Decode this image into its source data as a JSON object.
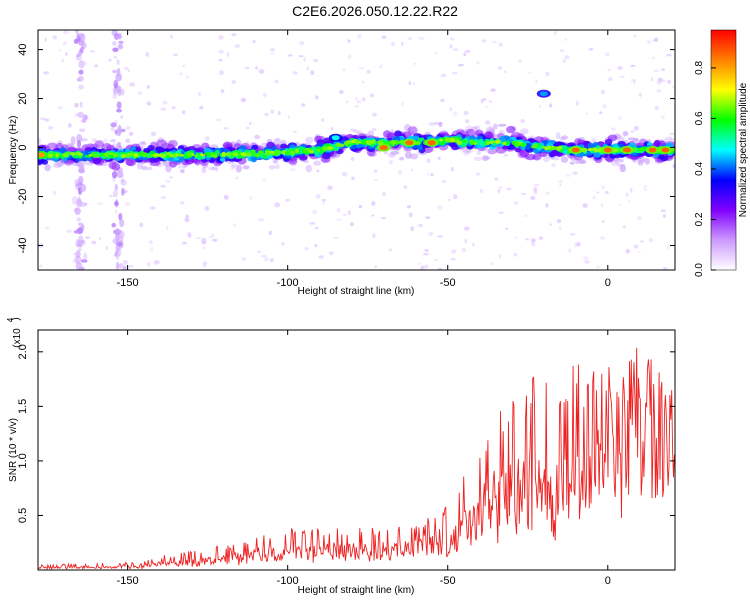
{
  "page": {
    "title": "C2E6.2026.050.12.22.R22"
  },
  "chart_data": [
    {
      "type": "heatmap",
      "xlabel": "Height of straight line (km)",
      "ylabel": "Frequency (Hz)",
      "xlim": [
        -178,
        21
      ],
      "ylim": [
        -50,
        48
      ],
      "x_ticks": [
        -150,
        -100,
        -50,
        0
      ],
      "y_ticks": [
        -40,
        -20,
        0,
        20,
        40
      ],
      "grid": false,
      "colorbar": {
        "label": "Normalized spectral amplitude",
        "range": [
          0,
          0.95
        ],
        "ticks": [
          "0.0",
          "0.2",
          "0.4",
          "0.6",
          "0.8"
        ],
        "colors": [
          "#ffffff",
          "#cc99ff",
          "#8000ff",
          "#0000ff",
          "#00ffff",
          "#00ff00",
          "#ffff00",
          "#ff8000",
          "#ff0000"
        ]
      },
      "ridge": {
        "x": [
          -178,
          -160,
          -140,
          -120,
          -100,
          -90,
          -80,
          -70,
          -60,
          -50,
          -40,
          -30,
          -20,
          -10,
          0,
          10,
          20
        ],
        "freq_hz": [
          -3,
          -3,
          -3,
          -3,
          -2,
          -1,
          2,
          2,
          2,
          3,
          2,
          2,
          0,
          -1,
          -1,
          -1,
          -1
        ]
      },
      "hotspots": [
        {
          "x": -177,
          "freq_hz": -3,
          "amplitude": 0.85
        },
        {
          "x": -85,
          "freq_hz": 4,
          "amplitude": 0.5
        },
        {
          "x": -70,
          "freq_hz": 0,
          "amplitude": 0.9
        },
        {
          "x": -62,
          "freq_hz": 2,
          "amplitude": 0.9
        },
        {
          "x": -55,
          "freq_hz": 2,
          "amplitude": 0.9
        },
        {
          "x": -20,
          "freq_hz": 22,
          "amplitude": 0.45
        },
        {
          "x": -10,
          "freq_hz": -1,
          "amplitude": 0.9
        },
        {
          "x": 0,
          "freq_hz": -1,
          "amplitude": 0.9
        },
        {
          "x": 6,
          "freq_hz": -1,
          "amplitude": 0.9
        },
        {
          "x": 14,
          "freq_hz": -1,
          "amplitude": 0.9
        },
        {
          "x": 18,
          "freq_hz": -1,
          "amplitude": 0.9
        }
      ],
      "interference_columns_km": [
        -165,
        -153
      ]
    },
    {
      "type": "line",
      "xlabel": "Height of straight line (km)",
      "ylabel": "SNR (10 * v/v)",
      "y_multiplier_label": "(x10",
      "y_multiplier_exp": "4",
      "xlim": [
        -178,
        21
      ],
      "ylim": [
        0,
        2.2
      ],
      "x_ticks": [
        -150,
        -100,
        -50,
        0
      ],
      "y_ticks": [
        "0.5",
        "1.0",
        "1.5",
        "2.0"
      ],
      "grid": false,
      "series": [
        {
          "color": "#ee2222",
          "x": [
            -178,
            -150,
            -140,
            -120,
            -110,
            -100,
            -90,
            -80,
            -70,
            -60,
            -50,
            -40,
            -35,
            -30,
            -25,
            -20,
            -15,
            -10,
            -5,
            0,
            5,
            8,
            10,
            15,
            20
          ],
          "baseline": [
            0.02,
            0.03,
            0.05,
            0.1,
            0.15,
            0.2,
            0.2,
            0.2,
            0.2,
            0.22,
            0.28,
            0.5,
            0.7,
            0.8,
            0.8,
            0.7,
            0.6,
            1.0,
            1.25,
            1.4,
            1.35,
            1.5,
            1.35,
            1.4,
            1.55
          ],
          "peaks": [
            0.05,
            0.07,
            0.13,
            0.23,
            0.3,
            0.38,
            0.4,
            0.38,
            0.4,
            0.43,
            0.6,
            1.2,
            1.5,
            1.65,
            1.75,
            2.0,
            1.8,
            1.9,
            1.85,
            1.9,
            1.8,
            2.15,
            1.95,
            1.95,
            1.7
          ]
        }
      ]
    }
  ]
}
